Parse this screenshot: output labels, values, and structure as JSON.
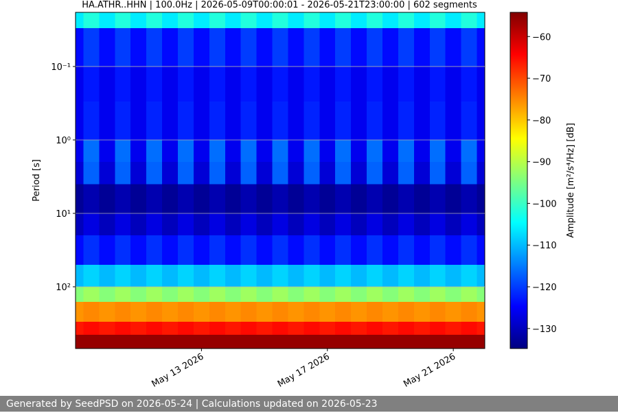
{
  "chart_data": {
    "type": "spectrogram",
    "title": "HA.ATHR..HHN | 100.0Hz | 2026-05-09T00:00:01 - 2026-05-21T23:00:00 | 602 segments",
    "ylabel": "Period [s]",
    "colorbar_label": "Amplitude [m²/s⁴/Hz] [dB]",
    "colormap": "jet",
    "y_log": true,
    "y_inverted": true,
    "grid": true,
    "xlim": [
      "2026-05-09T00:00",
      "2026-05-22T00:00"
    ],
    "xticks": [
      {
        "value": "2026-05-13T00:00",
        "label": "May 13 2026"
      },
      {
        "value": "2026-05-17T00:00",
        "label": "May 17 2026"
      },
      {
        "value": "2026-05-21T00:00",
        "label": "May 21 2026"
      }
    ],
    "ylim": [
      0.0183,
      693
    ],
    "yticks": [
      {
        "value": 0.1,
        "label": "10⁻¹"
      },
      {
        "value": 1,
        "label": "10⁰"
      },
      {
        "value": 10,
        "label": "10¹"
      },
      {
        "value": 100,
        "label": "10²"
      }
    ],
    "clim": [
      -134.8,
      -54.2
    ],
    "cticks": [
      {
        "value": -60,
        "label": "−60"
      },
      {
        "value": -70,
        "label": "−70"
      },
      {
        "value": -80,
        "label": "−80"
      },
      {
        "value": -90,
        "label": "−90"
      },
      {
        "value": -100,
        "label": "−100"
      },
      {
        "value": -110,
        "label": "−110"
      },
      {
        "value": -120,
        "label": "−120"
      },
      {
        "value": -130,
        "label": "−130"
      }
    ],
    "time_bins": [
      "2026-05-09T00:00",
      "2026-05-09T06:00",
      "2026-05-09T18:00",
      "2026-05-10T06:00",
      "2026-05-10T18:00",
      "2026-05-11T06:00",
      "2026-05-11T18:00",
      "2026-05-12T06:00",
      "2026-05-12T18:00",
      "2026-05-13T06:00",
      "2026-05-13T18:00",
      "2026-05-14T06:00",
      "2026-05-14T18:00",
      "2026-05-15T06:00",
      "2026-05-15T18:00",
      "2026-05-16T06:00",
      "2026-05-16T18:00",
      "2026-05-17T06:00",
      "2026-05-17T18:00",
      "2026-05-18T06:00",
      "2026-05-18T18:00",
      "2026-05-19T06:00",
      "2026-05-19T18:00",
      "2026-05-20T06:00",
      "2026-05-20T18:00",
      "2026-05-21T06:00",
      "2026-05-21T18:00",
      "2026-05-22T00:00"
    ],
    "period_bins": [
      0.0183,
      0.03,
      0.1,
      0.3,
      1,
      2,
      4,
      10,
      20,
      50,
      100,
      160,
      300,
      450,
      693
    ],
    "z": [
      [
        -106,
        -102,
        -106,
        -102,
        -106,
        -102,
        -106,
        -102,
        -106,
        -102,
        -106,
        -102,
        -106,
        -102,
        -106,
        -102,
        -106,
        -102,
        -106,
        -102,
        -106,
        -102,
        -106,
        -102,
        -106,
        -102,
        -106
      ],
      [
        -124,
        -120,
        -124,
        -120,
        -124,
        -120,
        -124,
        -120,
        -124,
        -120,
        -124,
        -120,
        -124,
        -120,
        -124,
        -120,
        -124,
        -120,
        -124,
        -120,
        -124,
        -120,
        -124,
        -120,
        -124,
        -120,
        -124
      ],
      [
        -126,
        -123,
        -126,
        -123,
        -126,
        -123,
        -126,
        -123,
        -126,
        -123,
        -126,
        -123,
        -126,
        -123,
        -126,
        -123,
        -126,
        -123,
        -126,
        -123,
        -126,
        -123,
        -126,
        -123,
        -126,
        -123,
        -126
      ],
      [
        -126,
        -122,
        -126,
        -122,
        -126,
        -122,
        -126,
        -122,
        -126,
        -122,
        -126,
        -122,
        -126,
        -122,
        -126,
        -122,
        -126,
        -122,
        -126,
        -122,
        -126,
        -122,
        -126,
        -122,
        -126,
        -122,
        -126
      ],
      [
        -126,
        -116,
        -126,
        -116,
        -126,
        -116,
        -126,
        -116,
        -126,
        -116,
        -126,
        -116,
        -126,
        -116,
        -126,
        -116,
        -126,
        -116,
        -126,
        -116,
        -126,
        -116,
        -126,
        -116,
        -126,
        -116,
        -126
      ],
      [
        -128,
        -117,
        -128,
        -117,
        -128,
        -117,
        -128,
        -117,
        -128,
        -117,
        -128,
        -117,
        -128,
        -117,
        -128,
        -117,
        -128,
        -117,
        -128,
        -117,
        -128,
        -117,
        -128,
        -117,
        -128,
        -117,
        -128
      ],
      [
        -133,
        -131,
        -133,
        -131,
        -133,
        -131,
        -133,
        -131,
        -133,
        -131,
        -133,
        -131,
        -133,
        -131,
        -133,
        -131,
        -133,
        -131,
        -133,
        -131,
        -133,
        -131,
        -133,
        -131,
        -133,
        -131,
        -133
      ],
      [
        -130,
        -127,
        -130,
        -127,
        -130,
        -127,
        -130,
        -127,
        -130,
        -127,
        -130,
        -127,
        -130,
        -127,
        -130,
        -127,
        -130,
        -127,
        -130,
        -127,
        -130,
        -127,
        -130,
        -127,
        -130,
        -127,
        -130
      ],
      [
        -124,
        -121,
        -124,
        -121,
        -124,
        -121,
        -124,
        -121,
        -124,
        -121,
        -124,
        -121,
        -124,
        -121,
        -124,
        -121,
        -124,
        -121,
        -124,
        -121,
        -124,
        -121,
        -124,
        -121,
        -124,
        -121,
        -124
      ],
      [
        -110,
        -108,
        -110,
        -108,
        -110,
        -108,
        -110,
        -108,
        -110,
        -108,
        -110,
        -108,
        -110,
        -108,
        -110,
        -108,
        -110,
        -108,
        -110,
        -108,
        -110,
        -108,
        -110,
        -108,
        -110,
        -108,
        -110
      ],
      [
        -94,
        -92,
        -94,
        -92,
        -94,
        -92,
        -94,
        -92,
        -94,
        -92,
        -94,
        -92,
        -94,
        -92,
        -94,
        -92,
        -94,
        -92,
        -94,
        -92,
        -94,
        -92,
        -94,
        -92,
        -94,
        -92,
        -94
      ],
      [
        -76,
        -75,
        -76,
        -75,
        -76,
        -75,
        -76,
        -75,
        -76,
        -75,
        -76,
        -75,
        -76,
        -75,
        -76,
        -75,
        -76,
        -75,
        -76,
        -75,
        -76,
        -75,
        -76,
        -75,
        -76,
        -75,
        -76
      ],
      [
        -66,
        -65,
        -66,
        -65,
        -66,
        -65,
        -66,
        -65,
        -66,
        -65,
        -66,
        -65,
        -66,
        -65,
        -66,
        -65,
        -66,
        -65,
        -66,
        -65,
        -66,
        -65,
        -66,
        -65,
        -66,
        -65,
        -66
      ],
      [
        -56,
        -56,
        -56,
        -56,
        -56,
        -56,
        -56,
        -56,
        -56,
        -56,
        -56,
        -56,
        -56,
        -56,
        -56,
        -56,
        -56,
        -56,
        -56,
        -56,
        -56,
        -56,
        -56,
        -56,
        -56,
        -56,
        -56
      ]
    ]
  },
  "footer": "Generated by SeedPSD on 2026-05-24 | Calculations updated on 2026-05-23"
}
